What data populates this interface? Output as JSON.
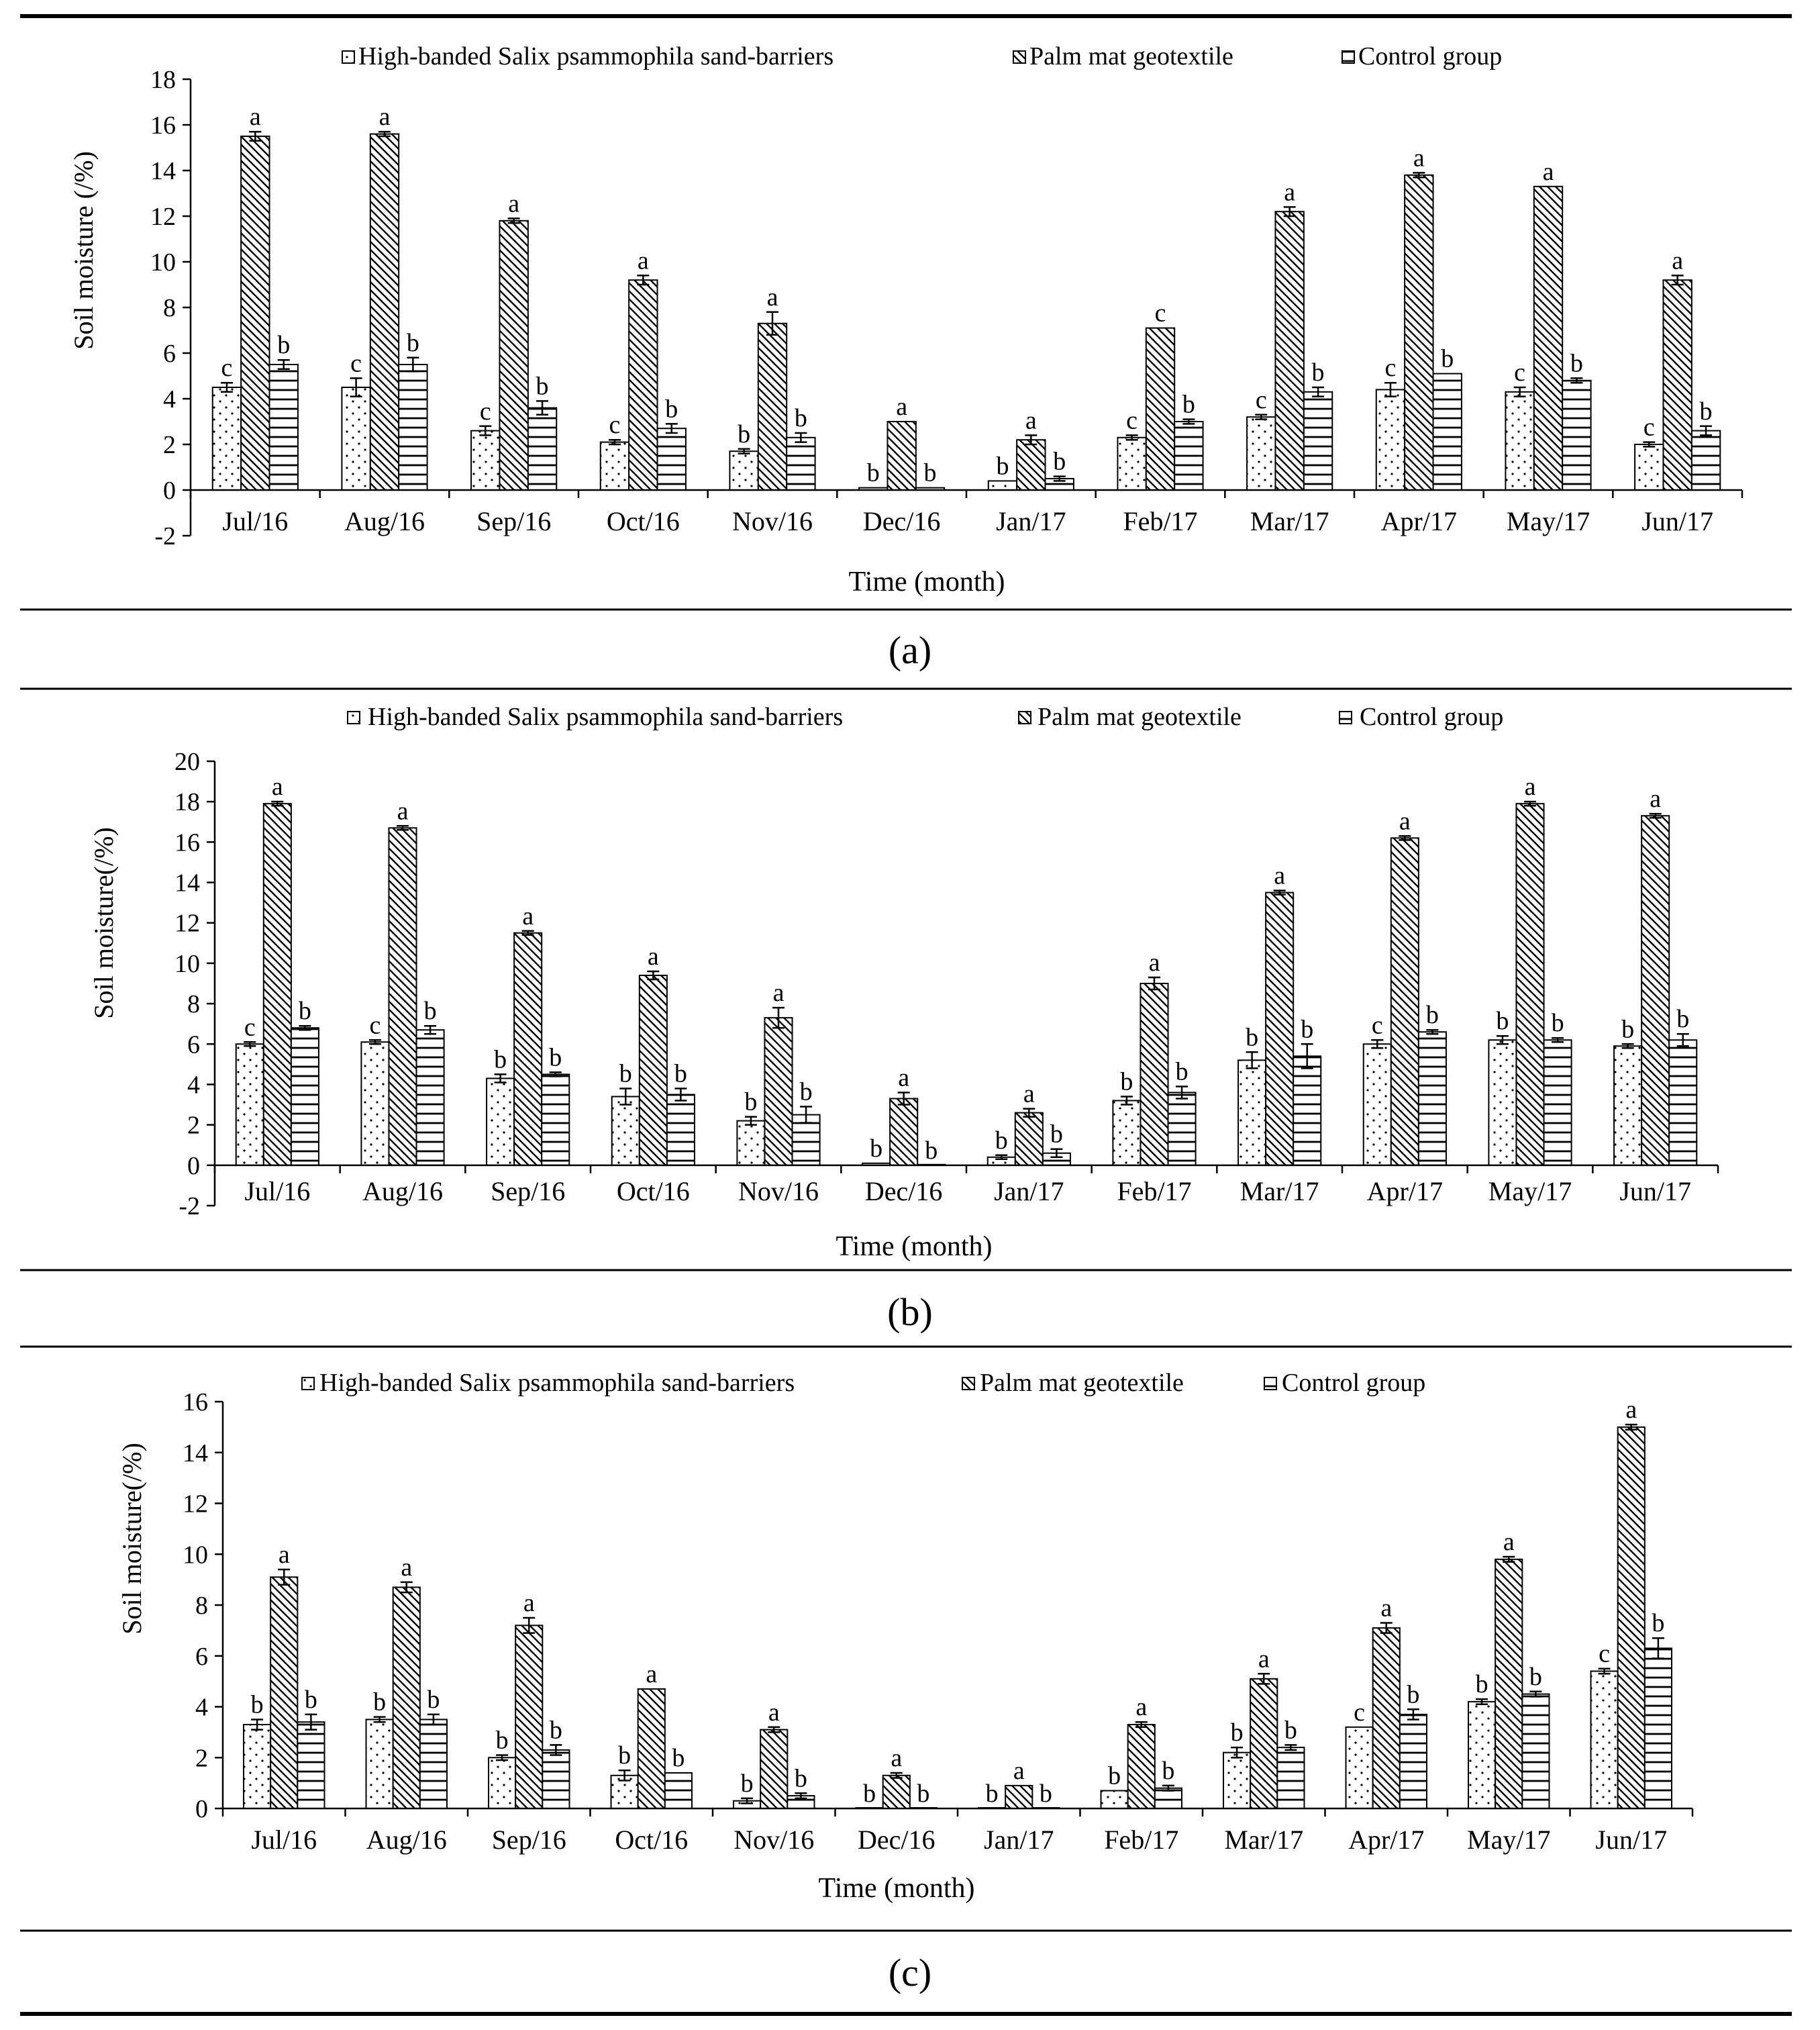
{
  "legend": {
    "s1": "High-banded Salix psammophila sand-barriers",
    "s2": "Palm mat geotextile",
    "s3": "Control group"
  },
  "colors": {
    "ink": "#000000",
    "background": "#ffffff"
  },
  "chart_data": [
    {
      "type": "bar",
      "panel_label": "(a)",
      "xlabel": "Time (month)",
      "ylabel": "Soil moisture (/%)",
      "ylim": [
        -2,
        18
      ],
      "yticks": [
        -2,
        0,
        2,
        4,
        6,
        8,
        10,
        12,
        14,
        16,
        18
      ],
      "legend_position": "top",
      "categories": [
        "Jul/16",
        "Aug/16",
        "Sep/16",
        "Oct/16",
        "Nov/16",
        "Dec/16",
        "Jan/17",
        "Feb/17",
        "Mar/17",
        "Apr/17",
        "May/17",
        "Jun/17"
      ],
      "series": [
        {
          "name": "High-banded Salix psammophila sand-barriers",
          "values": [
            4.5,
            4.5,
            2.6,
            2.1,
            1.7,
            0.1,
            0.4,
            2.3,
            3.2,
            4.4,
            4.3,
            2.0
          ],
          "errors": [
            0.2,
            0.4,
            0.2,
            0.1,
            0.1,
            0.0,
            0.0,
            0.1,
            0.1,
            0.3,
            0.2,
            0.1
          ],
          "labels": [
            "c",
            "c",
            "c",
            "c",
            "b",
            "b",
            "b",
            "c",
            "c",
            "c",
            "c",
            "c"
          ]
        },
        {
          "name": "Palm mat geotextile",
          "values": [
            15.5,
            15.6,
            11.8,
            9.2,
            7.3,
            3.0,
            2.2,
            7.1,
            12.2,
            13.8,
            13.3,
            9.2
          ],
          "errors": [
            0.2,
            0.1,
            0.1,
            0.2,
            0.5,
            0.0,
            0.2,
            0.0,
            0.2,
            0.1,
            0.0,
            0.2
          ],
          "labels": [
            "a",
            "a",
            "a",
            "a",
            "a",
            "a",
            "a",
            "c",
            "a",
            "a",
            "a",
            "a"
          ]
        },
        {
          "name": "Control group",
          "values": [
            5.5,
            5.5,
            3.6,
            2.7,
            2.3,
            0.1,
            0.5,
            3.0,
            4.3,
            5.1,
            4.8,
            2.6
          ],
          "errors": [
            0.2,
            0.3,
            0.3,
            0.2,
            0.2,
            0.0,
            0.1,
            0.1,
            0.2,
            0.0,
            0.1,
            0.2
          ],
          "labels": [
            "b",
            "b",
            "b",
            "b",
            "b",
            "b",
            "b",
            "b",
            "b",
            "b",
            "b",
            "b"
          ]
        }
      ]
    },
    {
      "type": "bar",
      "panel_label": "(b)",
      "xlabel": "Time (month)",
      "ylabel": "Soil moisture(/%)",
      "ylim": [
        -2,
        20
      ],
      "yticks": [
        -2,
        0,
        2,
        4,
        6,
        8,
        10,
        12,
        14,
        16,
        18,
        20
      ],
      "legend_position": "top",
      "categories": [
        "Jul/16",
        "Aug/16",
        "Sep/16",
        "Oct/16",
        "Nov/16",
        "Dec/16",
        "Jan/17",
        "Feb/17",
        "Mar/17",
        "Apr/17",
        "May/17",
        "Jun/17"
      ],
      "series": [
        {
          "name": "High-banded Salix psammophila sand-barriers",
          "values": [
            6.0,
            6.1,
            4.3,
            3.4,
            2.2,
            0.1,
            0.4,
            3.2,
            5.2,
            6.0,
            6.2,
            5.9
          ],
          "errors": [
            0.1,
            0.1,
            0.2,
            0.4,
            0.2,
            0.0,
            0.1,
            0.2,
            0.4,
            0.2,
            0.2,
            0.1
          ],
          "labels": [
            "c",
            "c",
            "b",
            "b",
            "b",
            "b",
            "b",
            "b",
            "b",
            "c",
            "b",
            "b"
          ]
        },
        {
          "name": "Palm mat geotextile",
          "values": [
            17.9,
            16.7,
            11.5,
            9.4,
            7.3,
            3.3,
            2.6,
            9.0,
            13.5,
            16.2,
            17.9,
            17.3
          ],
          "errors": [
            0.1,
            0.1,
            0.1,
            0.2,
            0.5,
            0.3,
            0.2,
            0.3,
            0.1,
            0.1,
            0.1,
            0.1
          ],
          "labels": [
            "a",
            "a",
            "a",
            "a",
            "a",
            "a",
            "a",
            "a",
            "a",
            "a",
            "a",
            "a"
          ]
        },
        {
          "name": "Control group",
          "values": [
            6.8,
            6.7,
            4.5,
            3.5,
            2.5,
            0.0,
            0.6,
            3.6,
            5.4,
            6.6,
            6.2,
            6.2
          ],
          "errors": [
            0.1,
            0.2,
            0.1,
            0.3,
            0.4,
            0.0,
            0.2,
            0.3,
            0.6,
            0.1,
            0.1,
            0.3
          ],
          "labels": [
            "b",
            "b",
            "b",
            "b",
            "b",
            "b",
            "b",
            "b",
            "b",
            "b",
            "b",
            "b"
          ]
        }
      ]
    },
    {
      "type": "bar",
      "panel_label": "(c)",
      "xlabel": "Time (month)",
      "ylabel": "Soil moisture(/%)",
      "ylim": [
        0,
        16
      ],
      "yticks": [
        0,
        2,
        4,
        6,
        8,
        10,
        12,
        14,
        16
      ],
      "legend_position": "top",
      "categories": [
        "Jul/16",
        "Aug/16",
        "Sep/16",
        "Oct/16",
        "Nov/16",
        "Dec/16",
        "Jan/17",
        "Feb/17",
        "Mar/17",
        "Apr/17",
        "May/17",
        "Jun/17"
      ],
      "series": [
        {
          "name": "High-banded Salix psammophila sand-barriers",
          "values": [
            3.3,
            3.5,
            2.0,
            1.3,
            0.3,
            0.0,
            0.0,
            0.7,
            2.2,
            3.2,
            4.2,
            5.4
          ],
          "errors": [
            0.2,
            0.1,
            0.1,
            0.2,
            0.1,
            0.0,
            0.0,
            0.0,
            0.2,
            0.0,
            0.1,
            0.1
          ],
          "labels": [
            "b",
            "b",
            "b",
            "b",
            "b",
            "b",
            "b",
            "b",
            "b",
            "c",
            "b",
            "c"
          ]
        },
        {
          "name": "Palm mat geotextile",
          "values": [
            9.1,
            8.7,
            7.2,
            4.7,
            3.1,
            1.3,
            0.9,
            3.3,
            5.1,
            7.1,
            9.8,
            15.0
          ],
          "errors": [
            0.3,
            0.2,
            0.3,
            0.0,
            0.1,
            0.1,
            0.0,
            0.1,
            0.2,
            0.2,
            0.1,
            0.1
          ],
          "labels": [
            "a",
            "a",
            "a",
            "a",
            "a",
            "a",
            "a",
            "a",
            "a",
            "a",
            "a",
            "a"
          ]
        },
        {
          "name": "Control group",
          "values": [
            3.4,
            3.5,
            2.3,
            1.4,
            0.5,
            0.0,
            0.0,
            0.8,
            2.4,
            3.7,
            4.5,
            6.3
          ],
          "errors": [
            0.3,
            0.2,
            0.2,
            0.0,
            0.1,
            0.0,
            0.0,
            0.1,
            0.1,
            0.2,
            0.1,
            0.4
          ],
          "labels": [
            "b",
            "b",
            "b",
            "b",
            "b",
            "b",
            "b",
            "b",
            "b",
            "b",
            "b",
            "b"
          ]
        }
      ]
    }
  ]
}
